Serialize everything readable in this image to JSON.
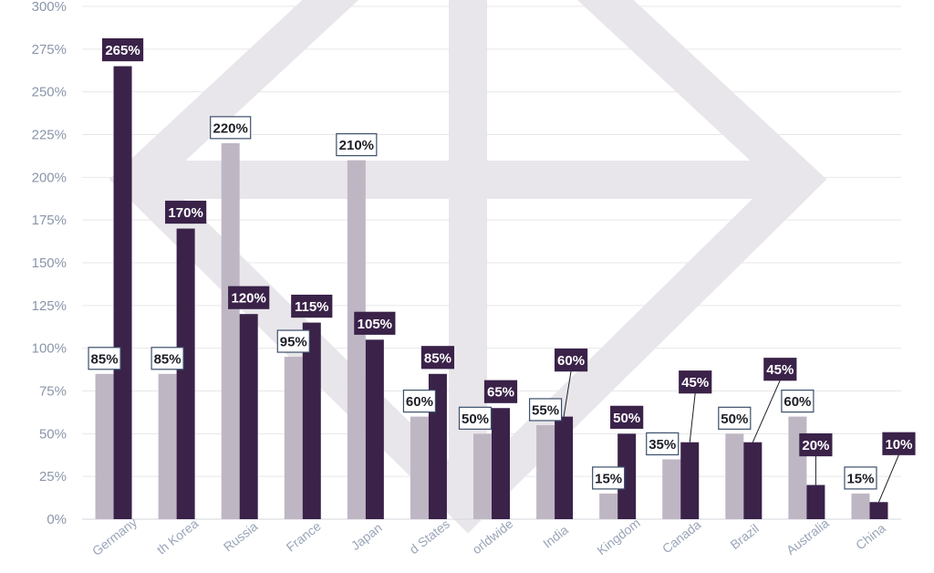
{
  "colors": {
    "series_a": "#bfb6c4",
    "series_b": "#3a2249",
    "grid": "#e7e7ea",
    "axis_text": "#8a96aa",
    "watermark": "#e8e6ea"
  },
  "chart_data": {
    "type": "bar",
    "title": "",
    "xlabel": "",
    "ylabel": "",
    "ylim": [
      0,
      300
    ],
    "y_ticks": [
      0,
      25,
      50,
      75,
      100,
      125,
      150,
      175,
      200,
      225,
      250,
      275,
      300
    ],
    "y_tick_labels": [
      "0%",
      "25%",
      "50%",
      "75%",
      "100%",
      "125%",
      "150%",
      "175%",
      "200%",
      "225%",
      "250%",
      "275%",
      "300%"
    ],
    "grid": true,
    "categories": [
      "Germany",
      "South Korea",
      "Russia",
      "France",
      "Japan",
      "United States",
      "Worldwide",
      "India",
      "United Kingdom",
      "Canada",
      "Brazil",
      "Australia",
      "China"
    ],
    "category_labels_visible": [
      "Germany",
      "th Korea",
      "Russia",
      "France",
      "Japan",
      "d States",
      "orldwide",
      "India",
      "Kingdom",
      "Canada",
      "Brazil",
      "Australia",
      "China"
    ],
    "series": [
      {
        "values": [
          85,
          85,
          220,
          95,
          210,
          60,
          50,
          55,
          15,
          35,
          50,
          60,
          15
        ],
        "labels": [
          "85%",
          "85%",
          "220%",
          "95%",
          "210%",
          "60%",
          "50%",
          "55%",
          "15%",
          "35%",
          "50%",
          "60%",
          "15%"
        ]
      },
      {
        "values": [
          265,
          170,
          120,
          115,
          105,
          85,
          65,
          60,
          50,
          45,
          45,
          20,
          10
        ],
        "labels": [
          "265%",
          "170%",
          "120%",
          "115%",
          "105%",
          "85%",
          "65%",
          "60%",
          "50%",
          "45%",
          "45%",
          "20%",
          "10%"
        ]
      }
    ]
  }
}
